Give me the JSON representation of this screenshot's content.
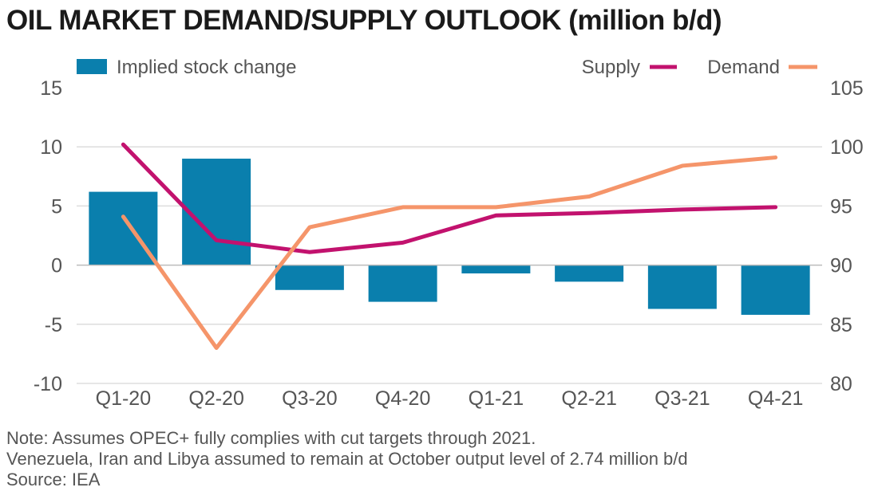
{
  "title": "OIL MARKET DEMAND/SUPPLY OUTLOOK (million b/d)",
  "chart_data": {
    "type": "bar+line",
    "categories": [
      "Q1-20",
      "Q2-20",
      "Q3-20",
      "Q4-20",
      "Q1-21",
      "Q2-21",
      "Q3-21",
      "Q4-21"
    ],
    "bar_series": {
      "name": "Implied stock change",
      "axis": "left",
      "color": "#0a7fad",
      "values": [
        6.2,
        9.0,
        -2.1,
        -3.1,
        -0.7,
        -1.4,
        -3.7,
        -4.2
      ]
    },
    "line_series": [
      {
        "name": "Supply",
        "axis": "right",
        "color": "#c2126e",
        "values": [
          100.2,
          92.1,
          91.1,
          91.9,
          94.2,
          94.4,
          94.7,
          94.9
        ]
      },
      {
        "name": "Demand",
        "axis": "right",
        "color": "#f5956a",
        "values": [
          94.1,
          83.0,
          93.2,
          94.9,
          94.9,
          95.8,
          98.4,
          99.1
        ]
      }
    ],
    "left_axis": {
      "ticks": [
        "15",
        "10",
        "5",
        "0",
        "-5",
        "-10"
      ],
      "ylim": [
        -10,
        15
      ]
    },
    "right_axis": {
      "ticks": [
        "105",
        "100",
        "95",
        "90",
        "85",
        "80"
      ],
      "ylim": [
        80,
        105
      ]
    },
    "grid_color": "#dddddd",
    "legend": {
      "bar_label": "Implied stock change",
      "supply_label": "Supply",
      "demand_label": "Demand"
    }
  },
  "notes": [
    "Note: Assumes OPEC+ fully complies with cut targets through 2021.",
    "Venezuela, Iran and Libya assumed to remain at October output level of 2.74 million b/d",
    "Source: IEA"
  ]
}
